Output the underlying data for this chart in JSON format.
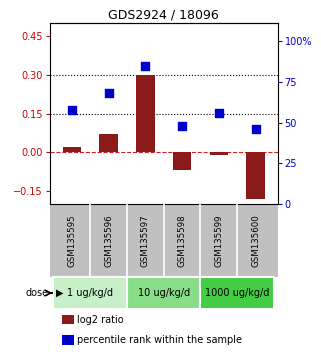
{
  "title": "GDS2924 / 18096",
  "samples": [
    "GSM135595",
    "GSM135596",
    "GSM135597",
    "GSM135598",
    "GSM135599",
    "GSM135600"
  ],
  "log2_ratio": [
    0.02,
    0.07,
    0.3,
    -0.07,
    -0.01,
    -0.18
  ],
  "percentile_rank": [
    0.58,
    0.68,
    0.85,
    0.48,
    0.56,
    0.46
  ],
  "dose_groups": [
    {
      "label": "1 ug/kg/d",
      "start": 0,
      "end": 1,
      "color": "#c8f0c8"
    },
    {
      "label": "10 ug/kg/d",
      "start": 2,
      "end": 3,
      "color": "#88dd88"
    },
    {
      "label": "1000 ug/kg/d",
      "start": 4,
      "end": 5,
      "color": "#44cc44"
    }
  ],
  "bar_color": "#8b1a1a",
  "dot_color": "#0000cc",
  "left_ylim": [
    -0.2,
    0.5
  ],
  "right_ylim": [
    0,
    1.1111
  ],
  "left_yticks": [
    -0.15,
    0,
    0.15,
    0.3,
    0.45
  ],
  "right_ytick_vals": [
    0.0,
    0.25,
    0.5,
    0.75,
    1.0
  ],
  "right_yticklabels": [
    "0",
    "25",
    "50",
    "75",
    "100%"
  ],
  "hline_y1": 0.15,
  "hline_y2": 0.3,
  "zero_line_y": 0,
  "left_tick_color": "#cc0000",
  "right_tick_color": "#0000cc",
  "sample_box_color": "#c0c0c0",
  "legend_bar_label": "log2 ratio",
  "legend_dot_label": "percentile rank within the sample",
  "bar_width": 0.5,
  "dot_size": 40
}
